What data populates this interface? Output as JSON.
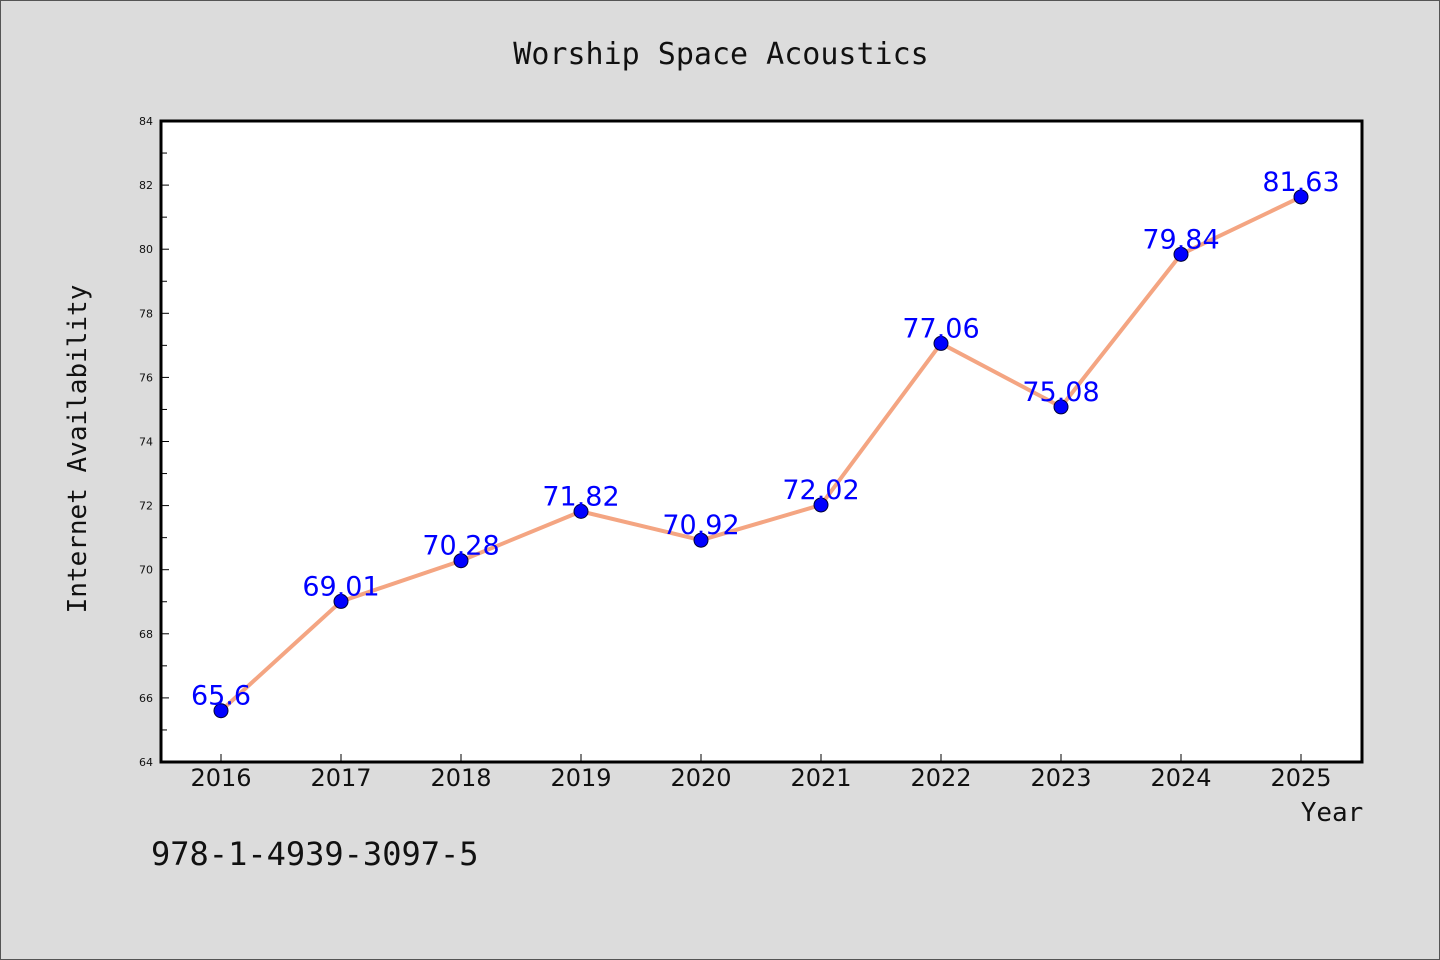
{
  "chart_data": {
    "type": "line",
    "title": "Worship Space Acoustics",
    "xlabel": "Year",
    "ylabel": "Internet Availability",
    "categories": [
      "2016",
      "2017",
      "2018",
      "2019",
      "2020",
      "2021",
      "2022",
      "2023",
      "2024",
      "2025"
    ],
    "series": [
      {
        "values": [
          65.6,
          69.01,
          70.28,
          71.82,
          70.92,
          72.02,
          77.06,
          75.08,
          79.84,
          81.63
        ]
      }
    ],
    "data_labels": [
      "65.6",
      "69.01",
      "70.28",
      "71.82",
      "70.92",
      "72.02",
      "77.06",
      "75.08",
      "79.84",
      "81.63"
    ],
    "ylim": [
      64,
      84
    ],
    "yticks": [
      "64",
      "66",
      "68",
      "70",
      "72",
      "74",
      "76",
      "78",
      "80",
      "82",
      "84"
    ],
    "grid": false,
    "colors": {
      "line": "#f4a582",
      "marker": "#0000ff",
      "label": "#0000ff",
      "plot_background": "#ffffff",
      "figure_background": "#dcdcdc"
    }
  },
  "annotation": "978-1-4939-3097-5"
}
